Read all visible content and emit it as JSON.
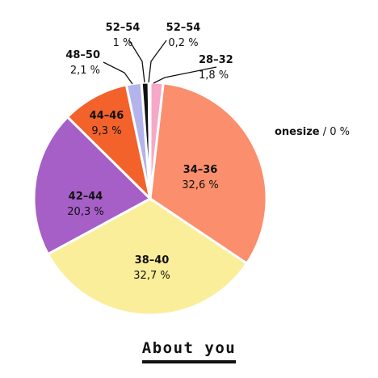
{
  "chart_data": {
    "type": "pie",
    "slices": [
      {
        "label": "28–32",
        "value": 1.8,
        "display": "1,8 %",
        "color": "#f7a8c8"
      },
      {
        "label": "34–36",
        "value": 32.6,
        "display": "32,6 %",
        "color": "#fb8e6c"
      },
      {
        "label": "38–40",
        "value": 32.7,
        "display": "32,7 %",
        "color": "#fbee9a"
      },
      {
        "label": "42–44",
        "value": 20.3,
        "display": "20,3 %",
        "color": "#a65fc6"
      },
      {
        "label": "44–46",
        "value": 9.3,
        "display": "9,3 %",
        "color": "#f2622a"
      },
      {
        "label": "48–50",
        "value": 2.1,
        "display": "2,1 %",
        "color": "#b4b4ec"
      },
      {
        "label": "52–54",
        "value": 1,
        "display": "1 %",
        "color": "#111111"
      },
      {
        "label": "52–54",
        "value": 0.2,
        "display": "0,2 %",
        "color": "#f7a8c8"
      }
    ],
    "extra_entry": {
      "label": "onesize",
      "display": "0 %"
    }
  },
  "footer": {
    "link_label": "About you"
  }
}
